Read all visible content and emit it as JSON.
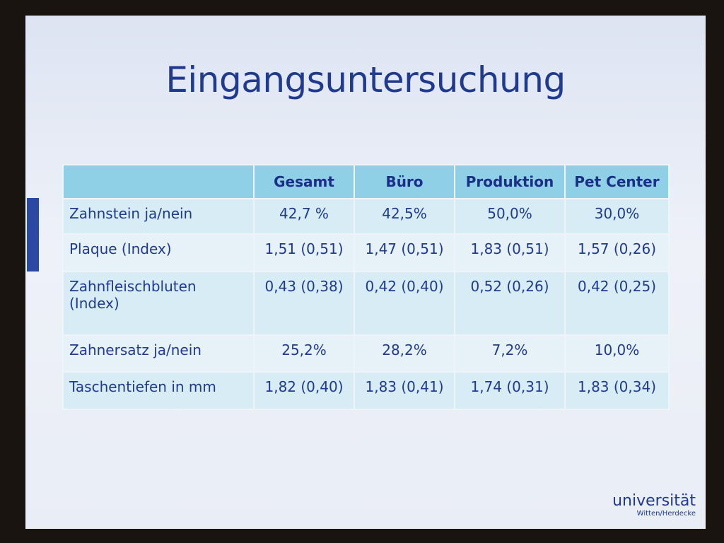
{
  "title": "Eingangsuntersuchung",
  "table": {
    "header": [
      "Gesamt",
      "Büro",
      "Produktion",
      "Pet Center"
    ],
    "rows": [
      [
        "Zahnstein ja/nein",
        "42,7 %",
        "42,5%",
        "50,0%",
        "30,0%"
      ],
      [
        "Plaque (Index)",
        "1,51 (0,51)",
        "1,47 (0,51)",
        "1,83 (0,51)",
        "1,57 (0,26)"
      ],
      [
        "Zahnfleischbluten (Index)",
        "0,43 (0,38)",
        "0,42 (0,40)",
        "0,52 (0,26)",
        "0,42 (0,25)"
      ],
      [
        "Zahnersatz ja/nein",
        "25,2%",
        "28,2%",
        "7,2%",
        "10,0%"
      ],
      [
        "Taschentiefen in mm",
        "1,82 (0,40)",
        "1,83 (0,41)",
        "1,74 (0,31)",
        "1,83 (0,34)"
      ]
    ]
  },
  "logo": {
    "name": "universität",
    "sub": "Witten/Herdecke"
  }
}
